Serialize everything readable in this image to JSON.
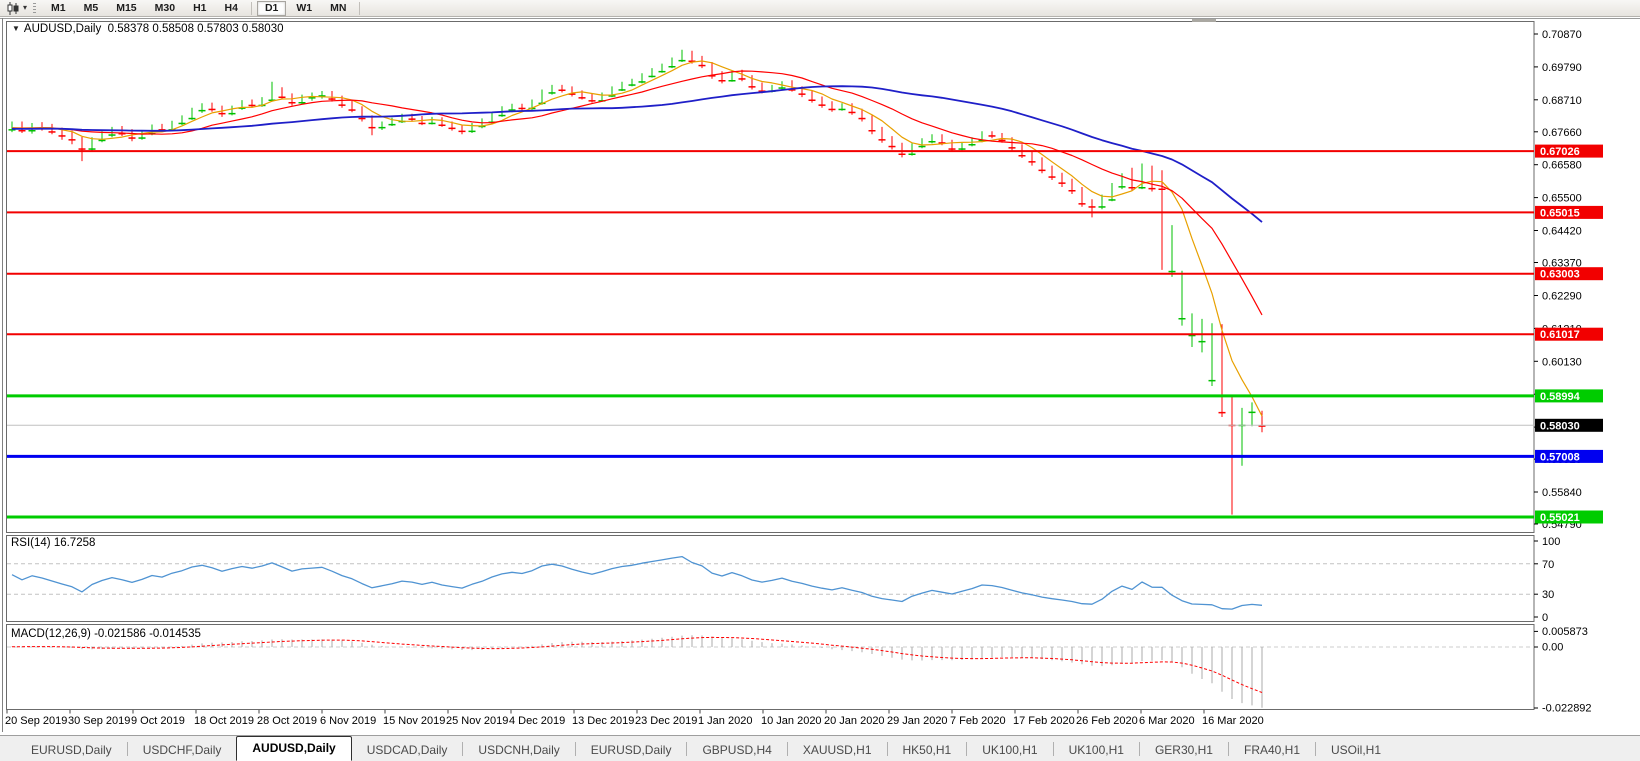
{
  "toolbar": {
    "chart_type_tool": "candlestick-chart",
    "timeframe_groups": [
      [
        "M1",
        "M5",
        "M15",
        "M30",
        "H1",
        "H4"
      ],
      [
        "D1",
        "W1",
        "MN"
      ]
    ],
    "active_timeframe": "D1"
  },
  "chart": {
    "symbol": "AUDUSD,Daily",
    "open": "0.58378",
    "high": "0.58508",
    "low": "0.57803",
    "close": "0.58030",
    "title_text": "AUDUSD,Daily  0.58378 0.58508 0.57803 0.58030",
    "price_axis_ticks": [
      "0.70870",
      "0.69790",
      "0.68710",
      "0.67660",
      "0.66580",
      "0.65500",
      "0.64420",
      "0.63370",
      "0.62290",
      "0.61210",
      "0.60130",
      "0.59050",
      "0.57970",
      "0.56920",
      "0.55840",
      "0.54790"
    ],
    "current_price": "0.58030",
    "hlines": [
      {
        "price": "0.67026",
        "color": "#f20000"
      },
      {
        "price": "0.65015",
        "color": "#f20000"
      },
      {
        "price": "0.63003",
        "color": "#f20000"
      },
      {
        "price": "0.61017",
        "color": "#f20000"
      },
      {
        "price": "0.58994",
        "color": "#00cc00"
      },
      {
        "price": "0.57008",
        "color": "#0000f0"
      },
      {
        "price": "0.55021",
        "color": "#00cc00"
      }
    ],
    "date_labels": [
      "20 Sep 2019",
      "30 Sep 2019",
      "9 Oct 2019",
      "18 Oct 2019",
      "28 Oct 2019",
      "6 Nov 2019",
      "15 Nov 2019",
      "25 Nov 2019",
      "4 Dec 2019",
      "13 Dec 2019",
      "23 Dec 2019",
      "1 Jan 2020",
      "10 Jan 2020",
      "20 Jan 2020",
      "29 Jan 2020",
      "7 Feb 2020",
      "17 Feb 2020",
      "26 Feb 2020",
      "6 Mar 2020",
      "16 Mar 2020"
    ],
    "moving_averages": [
      {
        "period": 5,
        "color": "#e8a000"
      },
      {
        "period": 13,
        "color": "#ff0000"
      },
      {
        "period": 34,
        "color": "#1f1fc8"
      }
    ],
    "colors": {
      "bull": "#00c000",
      "bear": "#fe0000",
      "current_line": "#c0c0c0"
    },
    "seed_closes": [
      0.6768,
      0.6775,
      0.6782,
      0.677,
      0.676,
      0.6772,
      0.6785,
      0.6778,
      0.6766,
      0.6774,
      0.6786,
      0.6779,
      0.6768,
      0.6776,
      0.6788,
      0.678,
      0.677,
      0.6762,
      0.6774,
      0.6784,
      0.6776,
      0.6765,
      0.6773,
      0.6785,
      0.6777,
      0.6766,
      0.6775,
      0.6787,
      0.6778,
      0.6769,
      0.6777,
      0.6786,
      0.6774,
      0.677
    ],
    "candles": [
      [
        0.6775,
        0.68,
        0.6765,
        0.679
      ],
      [
        0.679,
        0.68,
        0.6762,
        0.6772
      ],
      [
        0.6772,
        0.6795,
        0.676,
        0.6788
      ],
      [
        0.6788,
        0.6798,
        0.677,
        0.678
      ],
      [
        0.678,
        0.6792,
        0.6758,
        0.6768
      ],
      [
        0.6768,
        0.678,
        0.674,
        0.6755
      ],
      [
        0.6755,
        0.677,
        0.6725,
        0.6742
      ],
      [
        0.6742,
        0.675,
        0.667,
        0.6712
      ],
      [
        0.6712,
        0.6748,
        0.67,
        0.674
      ],
      [
        0.674,
        0.6768,
        0.6732,
        0.6758
      ],
      [
        0.6758,
        0.6782,
        0.6748,
        0.6772
      ],
      [
        0.6772,
        0.6785,
        0.6752,
        0.6762
      ],
      [
        0.6762,
        0.6775,
        0.6735,
        0.6748
      ],
      [
        0.6748,
        0.6772,
        0.674,
        0.6762
      ],
      [
        0.6762,
        0.679,
        0.6755,
        0.6782
      ],
      [
        0.6782,
        0.6792,
        0.6765,
        0.6775
      ],
      [
        0.6775,
        0.6802,
        0.6768,
        0.6796
      ],
      [
        0.6796,
        0.682,
        0.6788,
        0.6812
      ],
      [
        0.6812,
        0.6845,
        0.6805,
        0.6838
      ],
      [
        0.6838,
        0.686,
        0.6828,
        0.6852
      ],
      [
        0.6852,
        0.6862,
        0.6832,
        0.6842
      ],
      [
        0.6842,
        0.6852,
        0.6815,
        0.6828
      ],
      [
        0.6828,
        0.6852,
        0.682,
        0.6846
      ],
      [
        0.6846,
        0.687,
        0.6838,
        0.6862
      ],
      [
        0.6862,
        0.6872,
        0.6845,
        0.6855
      ],
      [
        0.6855,
        0.688,
        0.6848,
        0.6872
      ],
      [
        0.6872,
        0.693,
        0.6865,
        0.6898
      ],
      [
        0.6898,
        0.6912,
        0.6872,
        0.6882
      ],
      [
        0.6882,
        0.6892,
        0.6852,
        0.6864
      ],
      [
        0.6864,
        0.6888,
        0.6856,
        0.688
      ],
      [
        0.688,
        0.6895,
        0.6868,
        0.6886
      ],
      [
        0.6886,
        0.69,
        0.6875,
        0.6892
      ],
      [
        0.6892,
        0.69,
        0.6865,
        0.6876
      ],
      [
        0.6876,
        0.6885,
        0.6845,
        0.6856
      ],
      [
        0.6856,
        0.6868,
        0.683,
        0.684
      ],
      [
        0.684,
        0.685,
        0.68,
        0.6812
      ],
      [
        0.6812,
        0.682,
        0.6755,
        0.6782
      ],
      [
        0.6782,
        0.68,
        0.6772,
        0.6792
      ],
      [
        0.6792,
        0.6812,
        0.6785,
        0.6802
      ],
      [
        0.6802,
        0.6825,
        0.6795,
        0.6816
      ],
      [
        0.6816,
        0.6825,
        0.68,
        0.681
      ],
      [
        0.681,
        0.6818,
        0.6788,
        0.6796
      ],
      [
        0.6796,
        0.6815,
        0.679,
        0.6806
      ],
      [
        0.6806,
        0.6814,
        0.6782,
        0.679
      ],
      [
        0.679,
        0.68,
        0.677,
        0.678
      ],
      [
        0.678,
        0.679,
        0.6758,
        0.677
      ],
      [
        0.677,
        0.6795,
        0.6762,
        0.6786
      ],
      [
        0.6786,
        0.681,
        0.6778,
        0.68
      ],
      [
        0.68,
        0.683,
        0.6792,
        0.6822
      ],
      [
        0.6822,
        0.685,
        0.6815,
        0.684
      ],
      [
        0.684,
        0.6858,
        0.683,
        0.685
      ],
      [
        0.685,
        0.6858,
        0.6832,
        0.6845
      ],
      [
        0.6845,
        0.6872,
        0.6838,
        0.6862
      ],
      [
        0.6862,
        0.6905,
        0.6855,
        0.6896
      ],
      [
        0.6896,
        0.692,
        0.6888,
        0.6912
      ],
      [
        0.6912,
        0.692,
        0.6895,
        0.6905
      ],
      [
        0.6905,
        0.6915,
        0.6882,
        0.6892
      ],
      [
        0.6892,
        0.6902,
        0.6872,
        0.688
      ],
      [
        0.688,
        0.6892,
        0.6862,
        0.687
      ],
      [
        0.687,
        0.6895,
        0.6865,
        0.6886
      ],
      [
        0.6886,
        0.6915,
        0.688,
        0.6906
      ],
      [
        0.6906,
        0.693,
        0.69,
        0.6922
      ],
      [
        0.6922,
        0.694,
        0.6915,
        0.6932
      ],
      [
        0.6932,
        0.6958,
        0.6925,
        0.695
      ],
      [
        0.695,
        0.6975,
        0.6944,
        0.6966
      ],
      [
        0.6966,
        0.699,
        0.696,
        0.6982
      ],
      [
        0.6982,
        0.701,
        0.6975,
        0.7002
      ],
      [
        0.7002,
        0.7035,
        0.6995,
        0.7022
      ],
      [
        0.7022,
        0.7032,
        0.699,
        0.7
      ],
      [
        0.7,
        0.7015,
        0.6975,
        0.6986
      ],
      [
        0.6986,
        0.6995,
        0.694,
        0.6952
      ],
      [
        0.6952,
        0.6965,
        0.6925,
        0.6936
      ],
      [
        0.6936,
        0.6968,
        0.693,
        0.696
      ],
      [
        0.696,
        0.697,
        0.6932,
        0.6942
      ],
      [
        0.6942,
        0.6952,
        0.6905,
        0.6916
      ],
      [
        0.6916,
        0.6928,
        0.6892,
        0.6902
      ],
      [
        0.6902,
        0.692,
        0.6895,
        0.6912
      ],
      [
        0.6912,
        0.6932,
        0.6905,
        0.6926
      ],
      [
        0.6926,
        0.6935,
        0.6898,
        0.6906
      ],
      [
        0.6906,
        0.6915,
        0.688,
        0.6892
      ],
      [
        0.6892,
        0.69,
        0.6862,
        0.6872
      ],
      [
        0.6872,
        0.6882,
        0.6845,
        0.6856
      ],
      [
        0.6856,
        0.6866,
        0.6832,
        0.6842
      ],
      [
        0.6842,
        0.686,
        0.6835,
        0.6852
      ],
      [
        0.6852,
        0.686,
        0.6822,
        0.6832
      ],
      [
        0.6832,
        0.6842,
        0.68,
        0.6812
      ],
      [
        0.6812,
        0.682,
        0.6758,
        0.6772
      ],
      [
        0.6772,
        0.6782,
        0.673,
        0.6742
      ],
      [
        0.6742,
        0.6752,
        0.6708,
        0.672
      ],
      [
        0.672,
        0.673,
        0.6682,
        0.6695
      ],
      [
        0.6695,
        0.6728,
        0.6688,
        0.672
      ],
      [
        0.672,
        0.6745,
        0.6712,
        0.6736
      ],
      [
        0.6736,
        0.6758,
        0.6728,
        0.675
      ],
      [
        0.675,
        0.6758,
        0.6722,
        0.6732
      ],
      [
        0.6732,
        0.674,
        0.67,
        0.6712
      ],
      [
        0.6712,
        0.6732,
        0.6705,
        0.6726
      ],
      [
        0.6726,
        0.6748,
        0.6718,
        0.674
      ],
      [
        0.674,
        0.6768,
        0.6732,
        0.676
      ],
      [
        0.676,
        0.6768,
        0.6745,
        0.6755
      ],
      [
        0.6755,
        0.6762,
        0.673,
        0.674
      ],
      [
        0.674,
        0.6748,
        0.6705,
        0.6716
      ],
      [
        0.6716,
        0.6725,
        0.668,
        0.669
      ],
      [
        0.669,
        0.67,
        0.6655,
        0.667
      ],
      [
        0.667,
        0.6682,
        0.663,
        0.6642
      ],
      [
        0.6642,
        0.6655,
        0.6608,
        0.662
      ],
      [
        0.662,
        0.6632,
        0.6585,
        0.66
      ],
      [
        0.66,
        0.6612,
        0.6562,
        0.6575
      ],
      [
        0.6575,
        0.6585,
        0.652,
        0.6532
      ],
      [
        0.6532,
        0.6545,
        0.6485,
        0.6522
      ],
      [
        0.6522,
        0.656,
        0.6512,
        0.6545
      ],
      [
        0.6545,
        0.6598,
        0.6538,
        0.6588
      ],
      [
        0.6588,
        0.663,
        0.6578,
        0.6622
      ],
      [
        0.6622,
        0.6648,
        0.6572,
        0.6585
      ],
      [
        0.6585,
        0.6662,
        0.6578,
        0.6642
      ],
      [
        0.6642,
        0.6655,
        0.657,
        0.6582
      ],
      [
        0.662,
        0.664,
        0.6313,
        0.658
      ],
      [
        0.631,
        0.646,
        0.629,
        0.6452
      ],
      [
        0.6155,
        0.631,
        0.613,
        0.6302
      ],
      [
        0.61,
        0.617,
        0.606,
        0.6162
      ],
      [
        0.608,
        0.6152,
        0.6042,
        0.614
      ],
      [
        0.5952,
        0.6138,
        0.5932,
        0.6122
      ],
      [
        0.6122,
        0.6135,
        0.583,
        0.5847
      ],
      [
        0.5847,
        0.5902,
        0.551,
        0.5805
      ],
      [
        0.5805,
        0.586,
        0.567,
        0.5848
      ],
      [
        0.5848,
        0.5878,
        0.58,
        0.5862
      ],
      [
        0.58378,
        0.58508,
        0.57803,
        0.5803
      ]
    ]
  },
  "rsi": {
    "label": "RSI(14) 16.7258",
    "period": 14,
    "value": "16.7258",
    "axis_ticks": [
      {
        "text": "100",
        "value": 100
      },
      {
        "text": "70",
        "value": 70
      },
      {
        "text": "30",
        "value": 30
      },
      {
        "text": "0",
        "value": 0
      }
    ],
    "levels": [
      70,
      30
    ],
    "color": "#4f93d2"
  },
  "macd": {
    "label": "MACD(12,26,9) -0.021586 -0.014535",
    "fast": 12,
    "slow": 26,
    "signal": 9,
    "macd_value": "-0.021586",
    "signal_value": "-0.014535",
    "axis_ticks": [
      {
        "text": "0.005873",
        "value": 0.005873
      },
      {
        "text": "0.00",
        "value": 0
      },
      {
        "text": "-0.022892",
        "value": -0.022892
      }
    ],
    "hist_color": "#ababab",
    "signal_color": "#ff0000"
  },
  "tabs": [
    {
      "label": "EURUSD,Daily"
    },
    {
      "label": "USDCHF,Daily"
    },
    {
      "label": "AUDUSD,Daily",
      "active": true
    },
    {
      "label": "USDCAD,Daily"
    },
    {
      "label": "USDCNH,Daily"
    },
    {
      "label": "EURUSD,Daily"
    },
    {
      "label": "GBPUSD,H4"
    },
    {
      "label": "XAUUSD,H1"
    },
    {
      "label": "HK50,H1"
    },
    {
      "label": "UK100,H1"
    },
    {
      "label": "UK100,H1"
    },
    {
      "label": "GER30,H1"
    },
    {
      "label": "FRA40,H1"
    },
    {
      "label": "USOil,H1"
    }
  ]
}
